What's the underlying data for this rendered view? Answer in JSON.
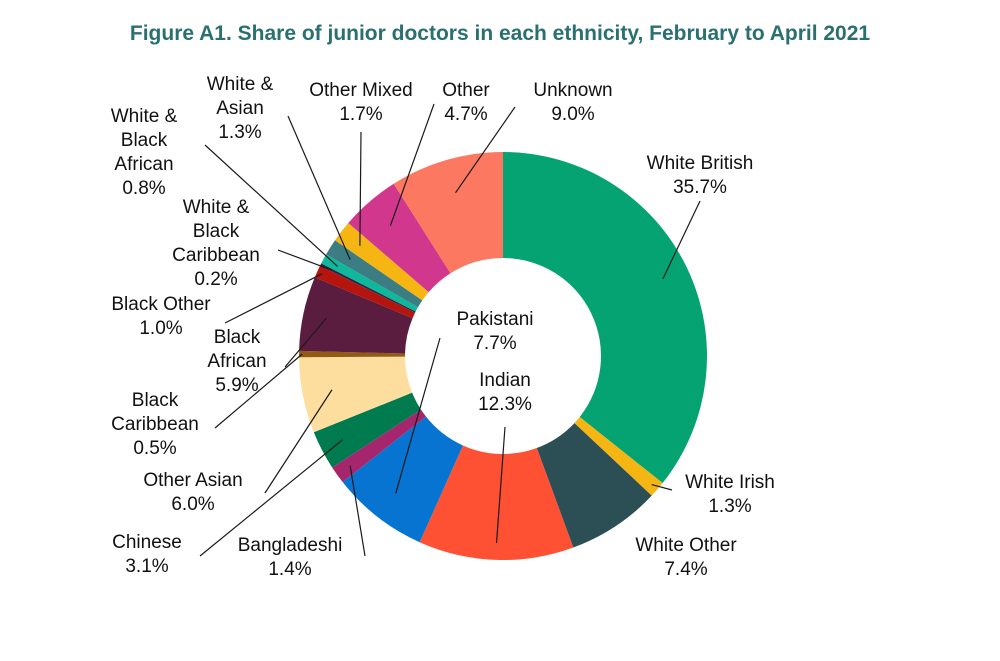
{
  "chart_data": {
    "type": "donut",
    "title": "Figure A1. Share of junior doctors in each ethnicity, February to April 2021",
    "unit": "%",
    "slices": [
      {
        "key": "white-british",
        "label": [
          "White British"
        ],
        "value": 35.7,
        "value_label": "35.7%",
        "color": "#05A372"
      },
      {
        "key": "white-irish",
        "label": [
          "White Irish"
        ],
        "value": 1.3,
        "value_label": "1.3%",
        "color": "#F5B614"
      },
      {
        "key": "white-other",
        "label": [
          "White Other"
        ],
        "value": 7.4,
        "value_label": "7.4%",
        "color": "#2B4F55"
      },
      {
        "key": "indian",
        "label": [
          "Indian"
        ],
        "value": 12.3,
        "value_label": "12.3%",
        "color": "#FE5033"
      },
      {
        "key": "pakistani",
        "label": [
          "Pakistani"
        ],
        "value": 7.7,
        "value_label": "7.7%",
        "color": "#0674D0"
      },
      {
        "key": "bangladeshi",
        "label": [
          "Bangladeshi"
        ],
        "value": 1.4,
        "value_label": "1.4%",
        "color": "#A6266E"
      },
      {
        "key": "chinese",
        "label": [
          "Chinese"
        ],
        "value": 3.1,
        "value_label": "3.1%",
        "color": "#007B4F"
      },
      {
        "key": "other-asian",
        "label": [
          "Other Asian"
        ],
        "value": 6.0,
        "value_label": "6.0%",
        "color": "#FEDE9F"
      },
      {
        "key": "black-caribbean",
        "label": [
          "Black",
          "Caribbean"
        ],
        "value": 0.5,
        "value_label": "0.5%",
        "color": "#925A13"
      },
      {
        "key": "black-african",
        "label": [
          "Black",
          "African"
        ],
        "value": 5.9,
        "value_label": "5.9%",
        "color": "#5A1D3F"
      },
      {
        "key": "black-other",
        "label": [
          "Black Other"
        ],
        "value": 1.0,
        "value_label": "1.0%",
        "color": "#B5150C"
      },
      {
        "key": "white-black-caribbean",
        "label": [
          "White &",
          "Black",
          "Caribbean"
        ],
        "value": 0.2,
        "value_label": "0.2%",
        "color": "#25284A"
      },
      {
        "key": "white-black-african",
        "label": [
          "White &",
          "Black",
          "African"
        ],
        "value": 0.8,
        "value_label": "0.8%",
        "color": "#0FB89A"
      },
      {
        "key": "white-asian",
        "label": [
          "White &",
          "Asian"
        ],
        "value": 1.3,
        "value_label": "1.3%",
        "color": "#3C7D84"
      },
      {
        "key": "other-mixed",
        "label": [
          "Other Mixed"
        ],
        "value": 1.7,
        "value_label": "1.7%",
        "color": "#F5B614"
      },
      {
        "key": "other",
        "label": [
          "Other"
        ],
        "value": 4.7,
        "value_label": "4.7%",
        "color": "#D2378E"
      },
      {
        "key": "unknown",
        "label": [
          "Unknown"
        ],
        "value": 9.0,
        "value_label": "9.0%",
        "color": "#FD7860"
      }
    ]
  }
}
